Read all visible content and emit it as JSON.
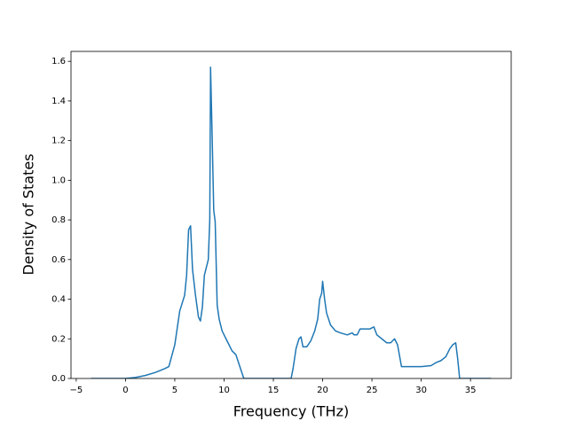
{
  "chart_data": {
    "type": "line",
    "x_label": "Frequency (THz)",
    "y_label": "Density of States",
    "xlim": [
      -5.53,
      39.13
    ],
    "ylim": [
      0,
      1.65
    ],
    "xticks": [
      {
        "value": -5,
        "label": "−5"
      },
      0,
      5,
      10,
      15,
      20,
      25,
      30,
      35
    ],
    "yticks": [
      {
        "value": 0,
        "label": "0.0"
      },
      {
        "value": 0.2,
        "label": "0.2"
      },
      {
        "value": 0.4,
        "label": "0.4"
      },
      {
        "value": 0.6,
        "label": "0.6"
      },
      {
        "value": 0.8,
        "label": "0.8"
      },
      {
        "value": 1.0,
        "label": "1.0"
      },
      {
        "value": 1.2,
        "label": "1.2"
      },
      {
        "value": 1.4,
        "label": "1.4"
      },
      {
        "value": 1.6,
        "label": "1.6"
      }
    ],
    "color": "#1f77b4",
    "x": [
      -3.5,
      0,
      1,
      2,
      3,
      4,
      4.4,
      5,
      5.5,
      6,
      6.2,
      6.4,
      6.6,
      6.8,
      7.1,
      7.4,
      7.6,
      7.8,
      8.0,
      8.4,
      8.55,
      8.63,
      8.8,
      8.95,
      9.1,
      9.3,
      9.5,
      9.8,
      10.3,
      10.8,
      11.2,
      11.6,
      12.0,
      16.8,
      17.0,
      17.3,
      17.6,
      17.8,
      18.0,
      18.4,
      18.8,
      19.2,
      19.5,
      19.7,
      19.9,
      20.0,
      20.2,
      20.4,
      20.8,
      21.3,
      21.8,
      22.5,
      23.0,
      23.2,
      23.5,
      23.8,
      24.8,
      25.2,
      25.5,
      26.0,
      26.5,
      26.9,
      27.3,
      27.6,
      28.0,
      29.0,
      30.0,
      31.0,
      31.5,
      32.0,
      32.5,
      32.9,
      33.2,
      33.5,
      33.7,
      33.9,
      37.1
    ],
    "values": [
      0,
      0,
      0.005,
      0.015,
      0.03,
      0.05,
      0.06,
      0.17,
      0.34,
      0.42,
      0.52,
      0.75,
      0.77,
      0.55,
      0.42,
      0.31,
      0.29,
      0.36,
      0.52,
      0.6,
      0.8,
      1.57,
      1.2,
      0.85,
      0.79,
      0.37,
      0.3,
      0.24,
      0.19,
      0.14,
      0.12,
      0.06,
      0,
      0,
      0.05,
      0.15,
      0.2,
      0.21,
      0.16,
      0.16,
      0.19,
      0.24,
      0.3,
      0.4,
      0.43,
      0.49,
      0.4,
      0.33,
      0.27,
      0.24,
      0.23,
      0.22,
      0.23,
      0.22,
      0.22,
      0.25,
      0.25,
      0.26,
      0.22,
      0.2,
      0.18,
      0.18,
      0.2,
      0.17,
      0.06,
      0.06,
      0.06,
      0.065,
      0.08,
      0.09,
      0.11,
      0.15,
      0.17,
      0.18,
      0.1,
      0,
      0
    ]
  }
}
